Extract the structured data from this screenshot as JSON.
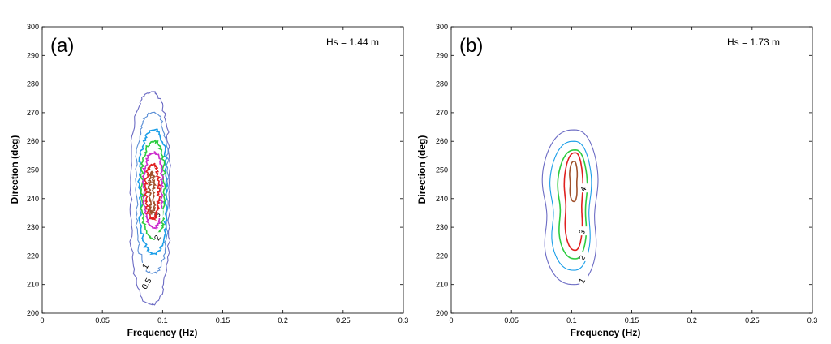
{
  "chart_data": [
    {
      "type": "contour",
      "panel_label": "(a)",
      "annotation": "Hs = 1.44 m",
      "xlabel": "Frequency (Hz)",
      "ylabel": "Direction (deg)",
      "xlim": [
        0,
        0.3
      ],
      "ylim": [
        200,
        300
      ],
      "xticks": [
        "0",
        "0.05",
        "0.1",
        "0.15",
        "0.2",
        "0.25",
        "0.3"
      ],
      "yticks": [
        "200",
        "210",
        "220",
        "230",
        "240",
        "250",
        "260",
        "270",
        "280",
        "290",
        "300"
      ],
      "contours": [
        {
          "level": "0.5",
          "color": "#6b6bc4",
          "center": [
            0.091,
            240
          ],
          "half_width": [
            0.019,
            0.016
          ],
          "dir_range": [
            203,
            277
          ],
          "label_at": [
            0.088,
            210
          ]
        },
        {
          "level": "1",
          "color": "#5a8fd6",
          "center": [
            0.092,
            242
          ],
          "half_width": [
            0.015,
            0.013
          ],
          "dir_range": [
            214,
            270
          ],
          "label_at": [
            0.087,
            216
          ]
        },
        {
          "level": "",
          "color": "#1a9ee8",
          "center": [
            0.093,
            242
          ],
          "half_width": [
            0.013,
            0.011
          ],
          "dir_range": [
            221,
            264
          ],
          "label_at": null
        },
        {
          "level": "2",
          "color": "#2ecc40",
          "center": [
            0.093,
            243
          ],
          "half_width": [
            0.011,
            0.009
          ],
          "dir_range": [
            226,
            260
          ],
          "label_at": [
            0.097,
            226
          ]
        },
        {
          "level": "3",
          "color": "#cc2ccc",
          "center": [
            0.093,
            243
          ],
          "half_width": [
            0.009,
            0.007
          ],
          "dir_range": [
            230,
            256
          ],
          "label_at": [
            0.097,
            234
          ]
        },
        {
          "level": "",
          "color": "#e02020",
          "center": [
            0.092,
            243
          ],
          "half_width": [
            0.006,
            0.005
          ],
          "dir_range": [
            233,
            252
          ],
          "label_at": null
        },
        {
          "level": "",
          "color": "#a0522d",
          "center": [
            0.091,
            243
          ],
          "half_width": [
            0.002,
            0.002
          ],
          "dir_range": [
            235,
            249
          ],
          "label_at": null
        }
      ]
    },
    {
      "type": "contour",
      "panel_label": "(b)",
      "annotation": "Hs = 1.73 m",
      "xlabel": "Frequency (Hz)",
      "ylabel": "Direction (deg)",
      "xlim": [
        0,
        0.3
      ],
      "ylim": [
        200,
        300
      ],
      "xticks": [
        "0",
        "0.05",
        "0.1",
        "0.15",
        "0.2",
        "0.25",
        "0.3"
      ],
      "yticks": [
        "200",
        "210",
        "220",
        "230",
        "240",
        "250",
        "260",
        "270",
        "280",
        "290",
        "300"
      ],
      "contours": [
        {
          "level": "1",
          "color": "#6b6bc4",
          "center": [
            0.102,
            239
          ],
          "half_width": [
            0.029,
            0.022
          ],
          "dir_range": [
            210,
            264
          ],
          "label_at": [
            0.11,
            211
          ]
        },
        {
          "level": "",
          "color": "#1a9ee8",
          "center": [
            0.102,
            239
          ],
          "half_width": [
            0.022,
            0.016
          ],
          "dir_range": [
            215,
            260
          ],
          "label_at": null
        },
        {
          "level": "2",
          "color": "#2ecc40",
          "center": [
            0.103,
            238
          ],
          "half_width": [
            0.016,
            0.011
          ],
          "dir_range": [
            219,
            257
          ],
          "label_at": [
            0.11,
            219
          ]
        },
        {
          "level": "3",
          "color": "#e02020",
          "center": [
            0.103,
            238
          ],
          "half_width": [
            0.01,
            0.007
          ],
          "dir_range": [
            222,
            256
          ],
          "label_at": [
            0.11,
            228
          ]
        },
        {
          "level": "4",
          "color": "#a0522d",
          "center": [
            0.102,
            247
          ],
          "half_width": [
            0.004,
            0.003
          ],
          "dir_range": [
            239,
            253
          ],
          "label_at": [
            0.111,
            243
          ]
        }
      ]
    }
  ]
}
